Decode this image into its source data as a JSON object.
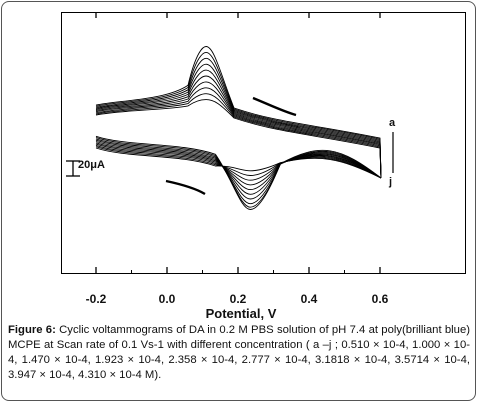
{
  "chart_data": {
    "type": "line",
    "title": "",
    "xlabel": "Potential, V",
    "ylabel": "",
    "xlim": [
      -0.3,
      0.73
    ],
    "xticks": [
      "-0.2",
      "0.0",
      "0.2",
      "0.4",
      "0.6"
    ],
    "xtick_values": [
      -0.2,
      0.0,
      0.2,
      0.4,
      0.6
    ],
    "scale_bar_label": "20μA",
    "scale_bar_value_uA": 20,
    "series_labels": {
      "first": "a",
      "last": "j"
    },
    "anodic_peak_potential_V": 0.11,
    "cathodic_peak_potential_V": 0.235,
    "start_potential_V": -0.2,
    "switch_potential_V": 0.6,
    "curves": 10,
    "anodic_peak_heights_uA": [
      14,
      22,
      30,
      38,
      46,
      54,
      62,
      70,
      78,
      86
    ],
    "cathodic_peak_depths_uA": [
      18,
      28,
      38,
      48,
      58,
      68,
      78,
      88,
      96,
      102
    ],
    "grid": false,
    "line_color": "#000000"
  },
  "caption": {
    "label": "Figure 6:",
    "text": " Cyclic voltammograms of DA in 0.2 M PBS solution of pH 7.4 at poly(brilliant blue) MCPE at Scan rate of 0.1 Vs-1 with different concentration ( a –j ; 0.510 × 10-4, 1.000 × 10-4, 1.470 × 10-4, 1.923 × 10-4, 2.358 × 10-4, 2.777 × 10-4, 3.1818 × 10-4, 3.5714 × 10-4, 3.947 × 10-4, 4.310 × 10-4 M)."
  }
}
